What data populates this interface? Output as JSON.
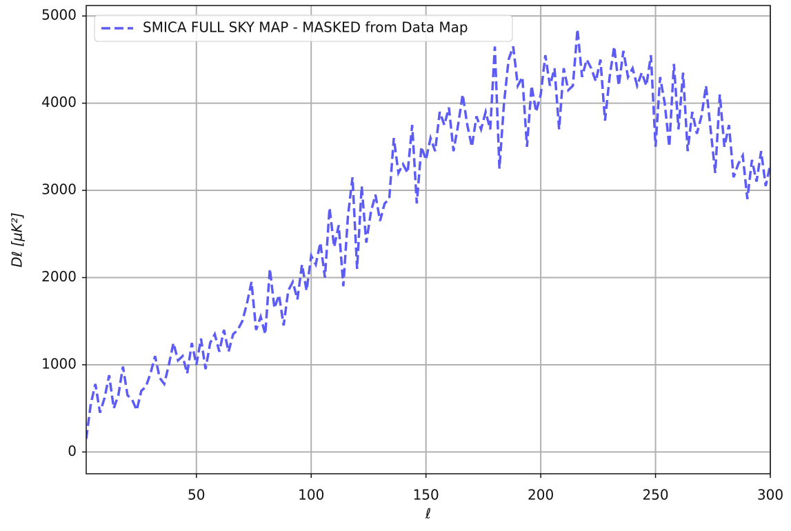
{
  "chart_data": {
    "type": "line",
    "xlabel": "ℓ",
    "ylabel": "Dℓ [μK²]",
    "x": [
      2,
      4,
      6,
      8,
      10,
      12,
      14,
      16,
      18,
      20,
      22,
      24,
      26,
      28,
      30,
      32,
      34,
      36,
      38,
      40,
      42,
      44,
      46,
      48,
      50,
      52,
      54,
      56,
      58,
      60,
      62,
      64,
      66,
      68,
      70,
      72,
      74,
      76,
      78,
      80,
      82,
      84,
      86,
      88,
      90,
      92,
      94,
      96,
      98,
      100,
      102,
      104,
      106,
      108,
      110,
      112,
      114,
      116,
      118,
      120,
      122,
      124,
      126,
      128,
      130,
      132,
      134,
      136,
      138,
      140,
      142,
      144,
      146,
      148,
      150,
      152,
      154,
      156,
      158,
      160,
      162,
      164,
      166,
      168,
      170,
      172,
      174,
      176,
      178,
      180,
      182,
      184,
      186,
      188,
      190,
      192,
      194,
      196,
      198,
      200,
      202,
      204,
      206,
      208,
      210,
      212,
      214,
      216,
      218,
      220,
      222,
      224,
      226,
      228,
      230,
      232,
      234,
      236,
      238,
      240,
      242,
      244,
      246,
      248,
      250,
      252,
      254,
      256,
      258,
      260,
      262,
      264,
      266,
      268,
      270,
      272,
      274,
      276,
      278,
      280,
      282,
      284,
      286,
      288,
      290,
      292,
      294,
      296,
      298,
      300
    ],
    "series": [
      {
        "name": "SMICA FULL SKY MAP - MASKED from Data Map",
        "color": "#5c5cf5",
        "dashed": true,
        "values": [
          150,
          550,
          780,
          450,
          620,
          880,
          500,
          650,
          980,
          650,
          600,
          480,
          700,
          750,
          900,
          1100,
          850,
          780,
          1000,
          1250,
          1050,
          1100,
          900,
          1250,
          1000,
          1300,
          950,
          1250,
          1350,
          1150,
          1400,
          1150,
          1350,
          1400,
          1500,
          1700,
          1950,
          1400,
          1550,
          1350,
          2100,
          1650,
          1800,
          1450,
          1850,
          1950,
          1750,
          2150,
          1850,
          2250,
          2150,
          2400,
          2000,
          2800,
          2350,
          2600,
          1900,
          2700,
          3150,
          2100,
          3050,
          2400,
          2750,
          2950,
          2650,
          2850,
          2900,
          3600,
          3200,
          3300,
          3200,
          3750,
          2850,
          3500,
          3350,
          3600,
          3450,
          3900,
          3750,
          3950,
          3450,
          3750,
          4100,
          3750,
          3500,
          3850,
          3700,
          3900,
          3700,
          4650,
          3250,
          4000,
          4500,
          4650,
          4200,
          4300,
          3500,
          4200,
          3900,
          4100,
          4550,
          4200,
          4400,
          3700,
          4400,
          4150,
          4200,
          4850,
          4300,
          4500,
          4400,
          4250,
          4500,
          3800,
          4300,
          4650,
          4200,
          4600,
          4300,
          4400,
          4200,
          4350,
          4200,
          4550,
          3500,
          4300,
          4000,
          3500,
          4450,
          3700,
          4350,
          3450,
          3900,
          3650,
          3850,
          4200,
          3700,
          3200,
          4100,
          3500,
          3750,
          3150,
          3300,
          3400,
          2900,
          3350,
          3100,
          3450,
          3050,
          3300
        ]
      }
    ],
    "xlim": [
      2,
      300
    ],
    "ylim": [
      -250,
      5120
    ],
    "xticks": [
      50,
      100,
      150,
      200,
      250,
      300
    ],
    "yticks": [
      0,
      1000,
      2000,
      3000,
      4000,
      5000
    ],
    "grid": true,
    "legend": "upper left"
  }
}
